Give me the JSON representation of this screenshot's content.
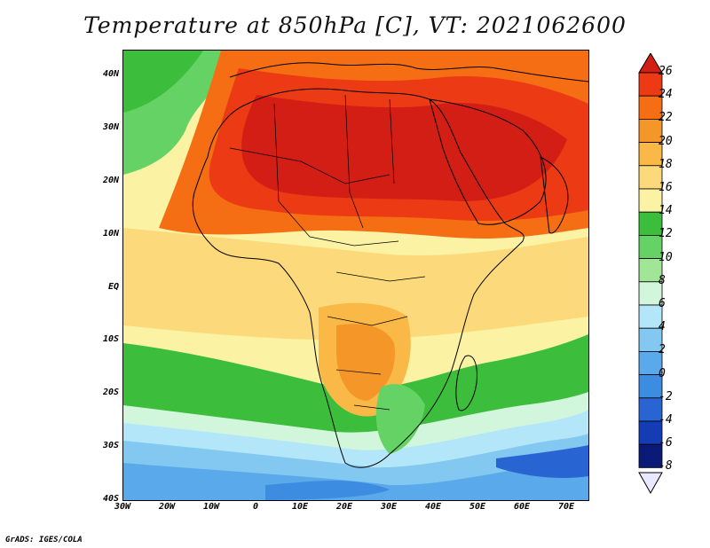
{
  "title": "Temperature at 850hPa [C], VT: 2021062600",
  "footer": "GrADS: IGES/COLA",
  "axes": {
    "lat_ticks": [
      "40N",
      "30N",
      "20N",
      "10N",
      "EQ",
      "10S",
      "20S",
      "30S",
      "40S"
    ],
    "lon_ticks": [
      "30W",
      "20W",
      "10W",
      "0",
      "10E",
      "20E",
      "30E",
      "40E",
      "50E",
      "60E",
      "70E"
    ]
  },
  "colorbar": {
    "labels": [
      "26",
      "24",
      "22",
      "20",
      "18",
      "16",
      "14",
      "12",
      "10",
      "8",
      "6",
      "4",
      "2",
      "0",
      "-2",
      "-4",
      "-6",
      "-8"
    ],
    "colors": [
      "#d21e14",
      "#eb3a14",
      "#f56e14",
      "#f59628",
      "#fab846",
      "#fcd97a",
      "#fcf2a4",
      "#3cbe3c",
      "#64d264",
      "#a0e696",
      "#d2f6dc",
      "#b4e6fa",
      "#82c8f0",
      "#5aaaeb",
      "#3c8ce1",
      "#2864d2",
      "#143cb4",
      "#0a1a78"
    ]
  },
  "map": {
    "domain": {
      "lon": [
        -30,
        75
      ],
      "lat": [
        -40,
        45
      ]
    },
    "palette": {
      "hot": "#d21e14",
      "red": "#eb3a14",
      "orange": "#f56e14",
      "lorange": "#f59628",
      "amber": "#fab846",
      "yellow": "#fcd97a",
      "pale": "#fcf2a4",
      "green": "#3cbe3c",
      "lgreen": "#64d264",
      "mint": "#a0e696",
      "ice": "#d2f6dc",
      "sky": "#b4e6fa",
      "blue": "#82c8f0",
      "mblue": "#5aaaeb",
      "dblue": "#3c8ce1",
      "deep": "#2864d2"
    }
  }
}
